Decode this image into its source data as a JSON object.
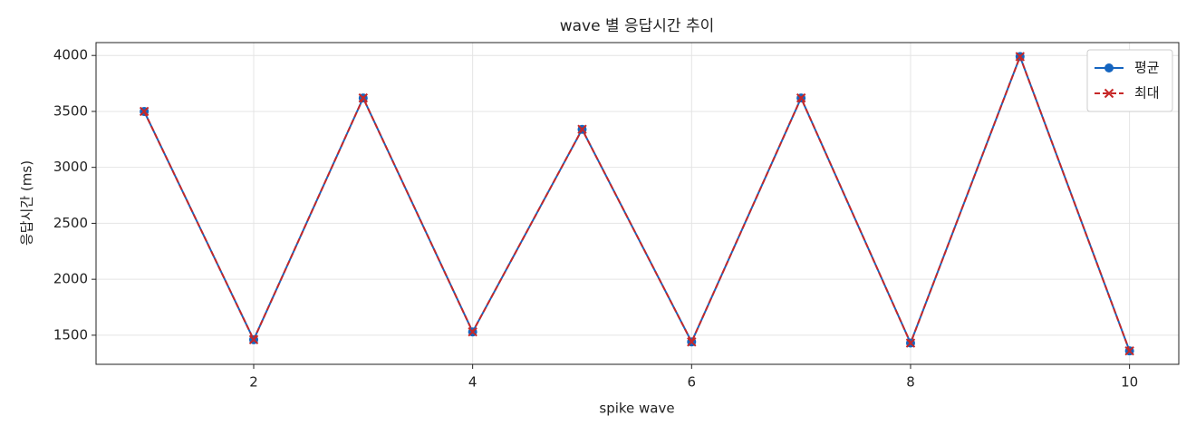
{
  "chart_data": {
    "type": "line",
    "title": "wave 별 응답시간 추이",
    "x_label": "spike wave",
    "y_label": "응답시간 (ms)",
    "x": [
      1,
      2,
      3,
      4,
      5,
      6,
      7,
      8,
      9,
      10
    ],
    "series": [
      {
        "name": "평균",
        "color": "#1565c0",
        "line_style": "solid",
        "marker": "circle",
        "values": [
          3500,
          1460,
          3620,
          1530,
          3340,
          1440,
          3620,
          1430,
          3990,
          1360
        ]
      },
      {
        "name": "최대",
        "color": "#c62828",
        "line_style": "dashed",
        "marker": "x",
        "values": [
          3500,
          1460,
          3620,
          1530,
          3340,
          1440,
          3620,
          1430,
          3990,
          1360
        ]
      }
    ],
    "xlim": [
      0.56,
      10.45
    ],
    "xticks": [
      2,
      4,
      6,
      8,
      10
    ],
    "ylim": [
      1240,
      4115
    ],
    "yticks": [
      1500,
      2000,
      2500,
      3000,
      3500,
      4000
    ],
    "grid": true,
    "legend": "upper right"
  }
}
